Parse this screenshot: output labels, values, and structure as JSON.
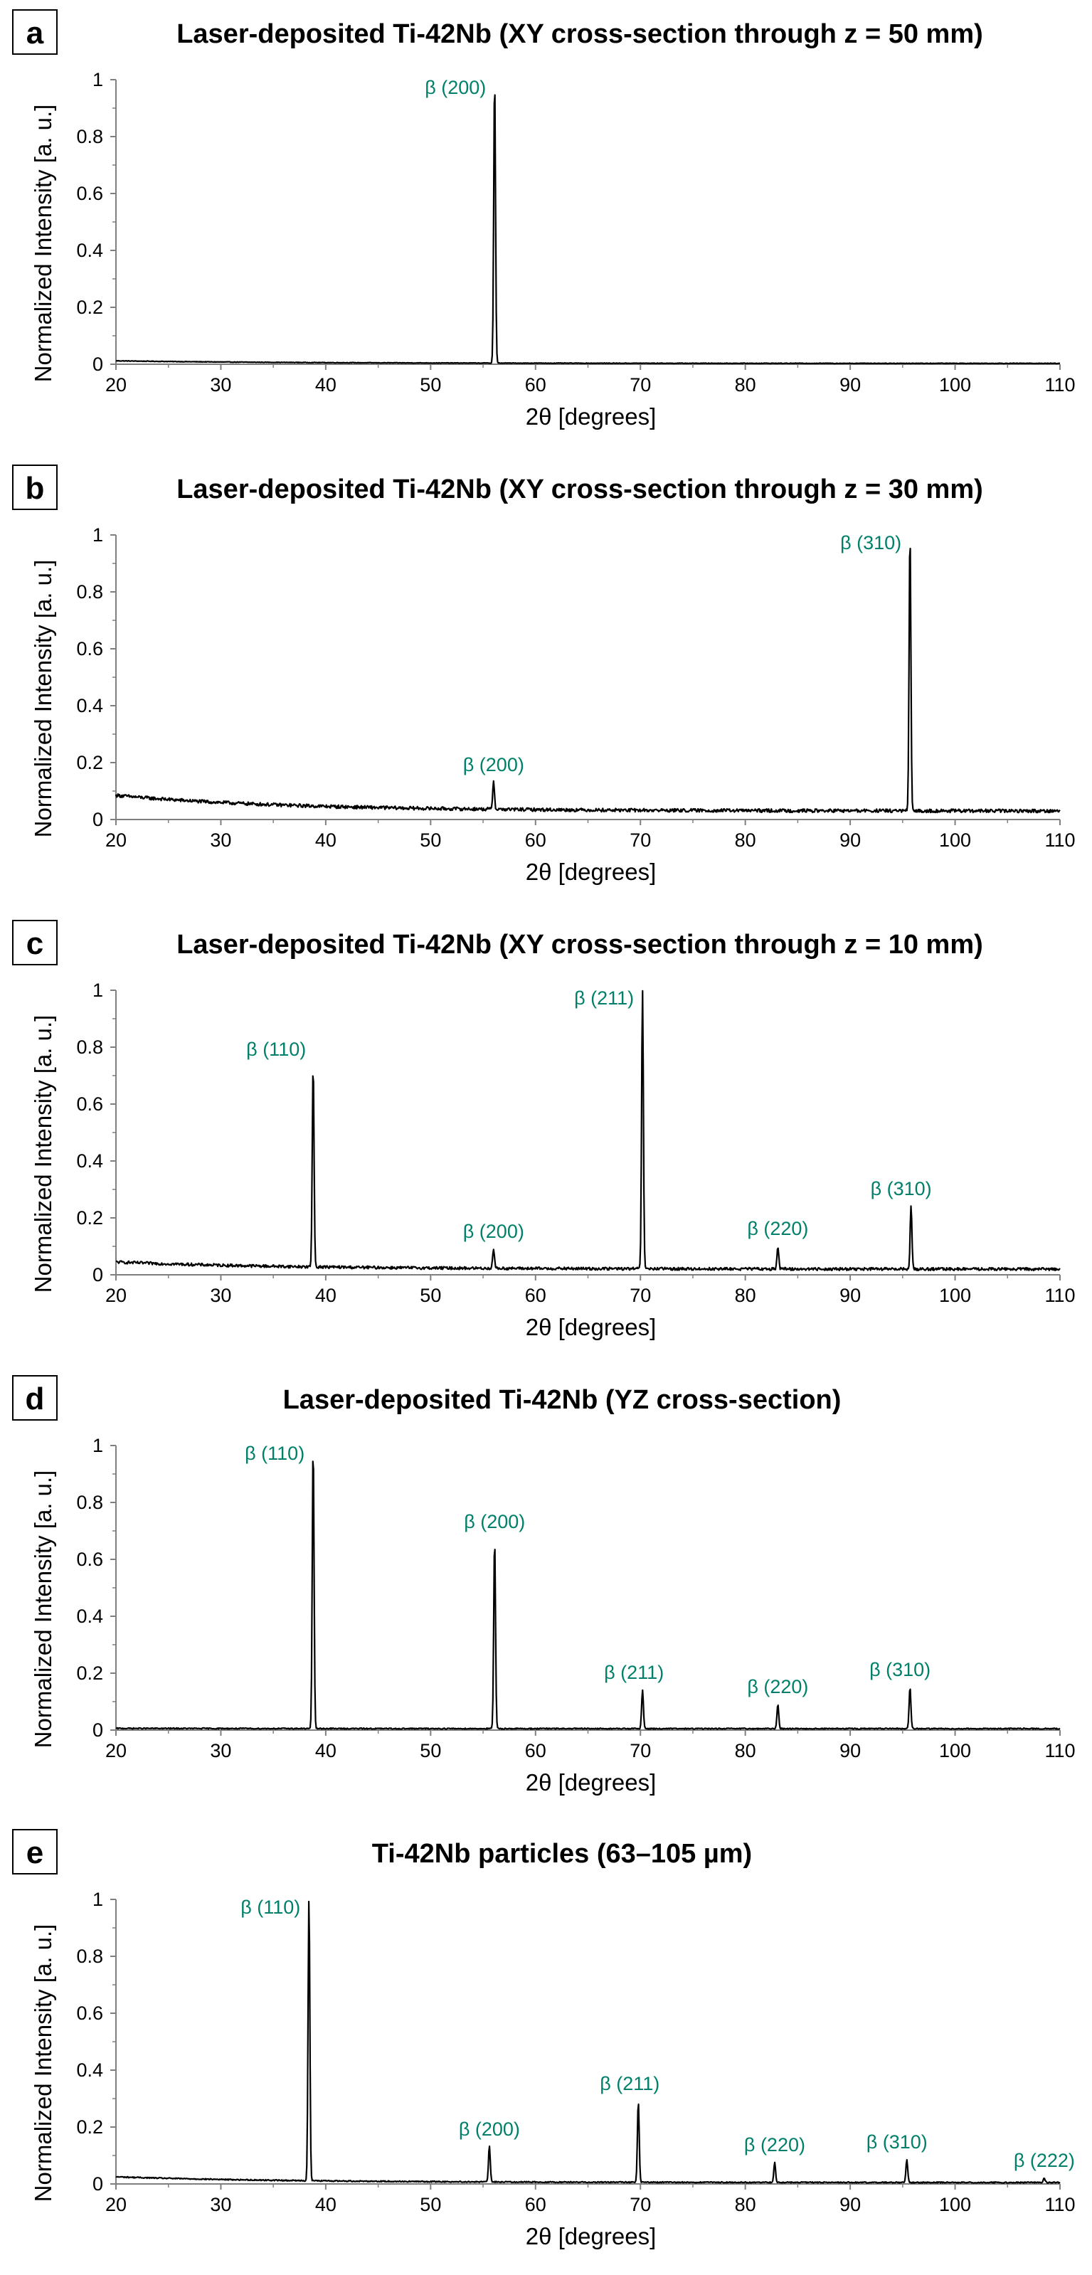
{
  "chart_data": [
    {
      "panel": "a",
      "type": "line",
      "title": "Laser-deposited Ti-42Nb (XY cross-section through z = 50 mm)",
      "xlabel": "2θ [degrees]",
      "ylabel": "Normalized Intensity [a. u.]",
      "xlim": [
        20,
        110
      ],
      "ylim": [
        0,
        1
      ],
      "xticks": [
        "20",
        "30",
        "40",
        "50",
        "60",
        "70",
        "80",
        "90",
        "100",
        "110"
      ],
      "yticks": [
        "0",
        "0.2",
        "0.4",
        "0.6",
        "0.8",
        "1"
      ],
      "baseline": {
        "start": 0.012,
        "end": 0.003,
        "noise": 0.001
      },
      "peaks": [
        {
          "label": "β (200)",
          "x": 56.1,
          "y": 1.0
        }
      ]
    },
    {
      "panel": "b",
      "type": "line",
      "title": "Laser-deposited Ti-42Nb (XY cross-section through z = 30 mm)",
      "xlabel": "2θ [degrees]",
      "ylabel": "Normalized Intensity [a. u.]",
      "xlim": [
        20,
        110
      ],
      "ylim": [
        0,
        1
      ],
      "xticks": [
        "20",
        "30",
        "40",
        "50",
        "60",
        "70",
        "80",
        "90",
        "100",
        "110"
      ],
      "yticks": [
        "0",
        "0.2",
        "0.4",
        "0.6",
        "0.8",
        "1"
      ],
      "baseline": {
        "start": 0.085,
        "end": 0.03,
        "noise": 0.006
      },
      "peaks": [
        {
          "label": "β (200)",
          "x": 56.0,
          "y": 0.13
        },
        {
          "label": "β (310)",
          "x": 95.7,
          "y": 1.0
        }
      ]
    },
    {
      "panel": "c",
      "type": "line",
      "title": "Laser-deposited Ti-42Nb (XY cross-section through z = 10 mm)",
      "xlabel": "2θ [degrees]",
      "ylabel": "Normalized Intensity [a. u.]",
      "xlim": [
        20,
        110
      ],
      "ylim": [
        0,
        1
      ],
      "xticks": [
        "20",
        "30",
        "40",
        "50",
        "60",
        "70",
        "80",
        "90",
        "100",
        "110"
      ],
      "yticks": [
        "0",
        "0.2",
        "0.4",
        "0.6",
        "0.8",
        "1"
      ],
      "baseline": {
        "start": 0.045,
        "end": 0.02,
        "noise": 0.005
      },
      "peaks": [
        {
          "label": "β (110)",
          "x": 38.8,
          "y": 0.73
        },
        {
          "label": "β (200)",
          "x": 56.0,
          "y": 0.09
        },
        {
          "label": "β (211)",
          "x": 70.2,
          "y": 1.0
        },
        {
          "label": "β (220)",
          "x": 83.1,
          "y": 0.1
        },
        {
          "label": "β (310)",
          "x": 95.8,
          "y": 0.24
        }
      ]
    },
    {
      "panel": "d",
      "type": "line",
      "title": "Laser-deposited Ti-42Nb (YZ cross-section)",
      "xlabel": "2θ [degrees]",
      "ylabel": "Normalized Intensity [a. u.]",
      "xlim": [
        20,
        110
      ],
      "ylim": [
        0,
        1
      ],
      "xticks": [
        "20",
        "30",
        "40",
        "50",
        "60",
        "70",
        "80",
        "90",
        "100",
        "110"
      ],
      "yticks": [
        "0",
        "0.2",
        "0.4",
        "0.6",
        "0.8",
        "1"
      ],
      "baseline": {
        "start": 0.006,
        "end": 0.005,
        "noise": 0.002
      },
      "peaks": [
        {
          "label": "β (110)",
          "x": 38.8,
          "y": 1.0
        },
        {
          "label": "β (200)",
          "x": 56.1,
          "y": 0.67
        },
        {
          "label": "β (211)",
          "x": 70.2,
          "y": 0.14
        },
        {
          "label": "β (220)",
          "x": 83.1,
          "y": 0.09
        },
        {
          "label": "β (310)",
          "x": 95.7,
          "y": 0.15
        }
      ]
    },
    {
      "panel": "e",
      "type": "line",
      "title": "Ti-42Nb particles (63–105 µm)",
      "xlabel": "2θ [degrees]",
      "ylabel": "Normalized Intensity [a. u.]",
      "xlim": [
        20,
        110
      ],
      "ylim": [
        0,
        1
      ],
      "xticks": [
        "20",
        "30",
        "40",
        "50",
        "60",
        "70",
        "80",
        "90",
        "100",
        "110"
      ],
      "yticks": [
        "0",
        "0.2",
        "0.4",
        "0.6",
        "0.8",
        "1"
      ],
      "baseline": {
        "start": 0.025,
        "end": 0.005,
        "noise": 0.002
      },
      "peaks": [
        {
          "label": "β (110)",
          "x": 38.4,
          "y": 1.0
        },
        {
          "label": "β (200)",
          "x": 55.6,
          "y": 0.13
        },
        {
          "label": "β (211)",
          "x": 69.8,
          "y": 0.29
        },
        {
          "label": "β (220)",
          "x": 82.8,
          "y": 0.075
        },
        {
          "label": "β (310)",
          "x": 95.4,
          "y": 0.085
        },
        {
          "label": "β (222)",
          "x": 108.5,
          "y": 0.02
        }
      ]
    }
  ]
}
